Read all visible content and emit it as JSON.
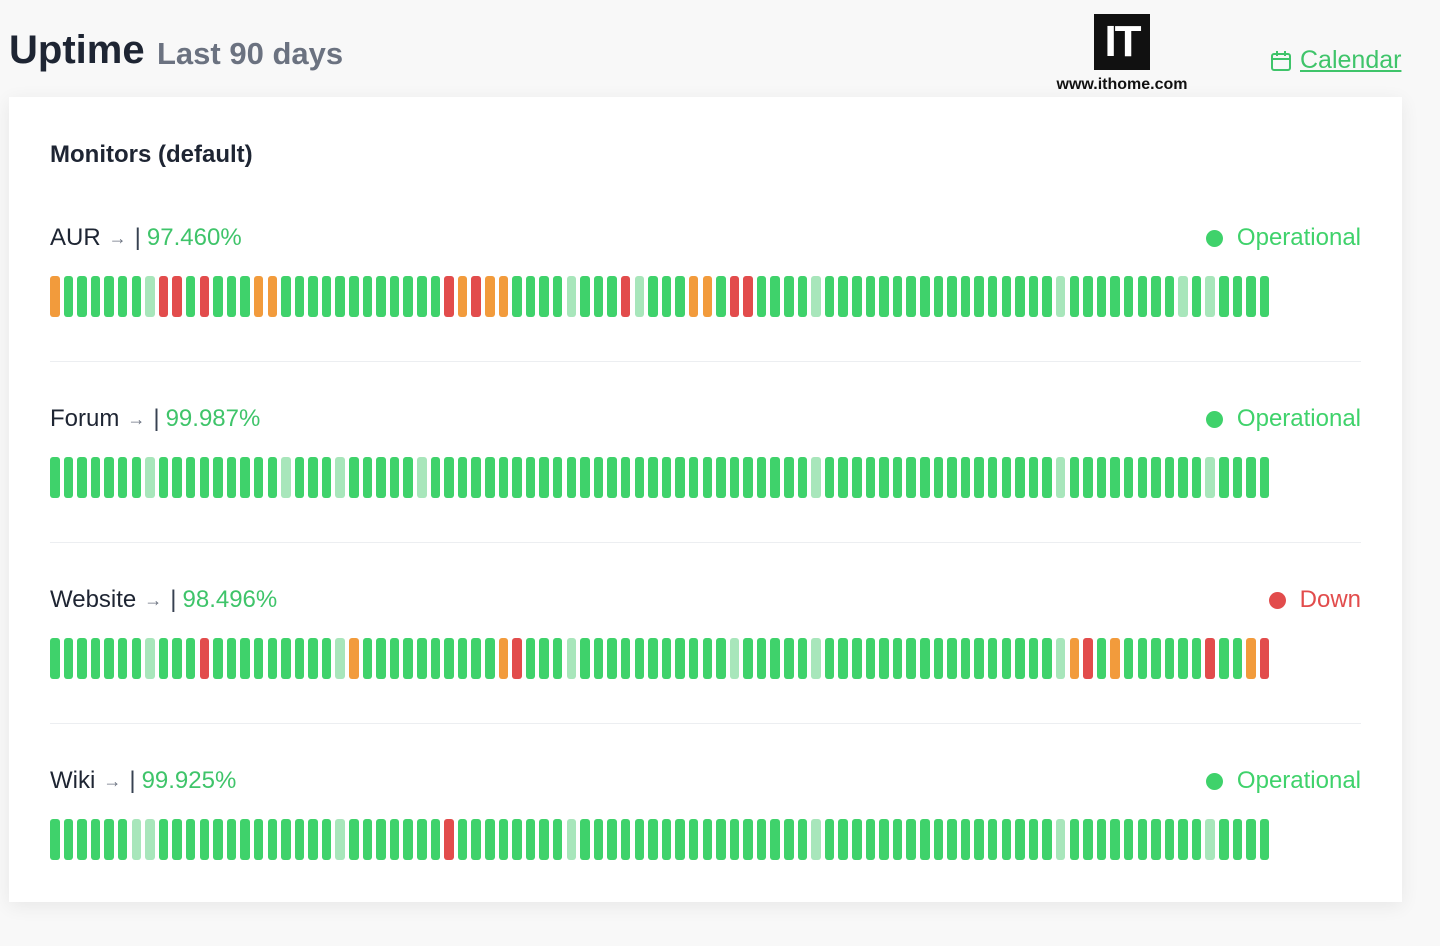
{
  "header": {
    "title": "Uptime",
    "subtitle": "Last 90 days",
    "calendar_link": "Calendar"
  },
  "watermark": {
    "logo": "IT",
    "url": "www.ithome.com"
  },
  "card": {
    "title": "Monitors (default)"
  },
  "row_arrow": "→",
  "row_divider": "|",
  "monitors": [
    {
      "name": "AUR",
      "uptime": "97.460%",
      "status": "Operational",
      "status_color": "#3fd26b",
      "bars": [
        "#f29b3c",
        "#3fd26b",
        "#3fd26b",
        "#3fd26b",
        "#3fd26b",
        "#3fd26b",
        "#3fd26b",
        "#a8e6bb",
        "#e24c4c",
        "#e24c4c",
        "#3fd26b",
        "#e24c4c",
        "#3fd26b",
        "#3fd26b",
        "#3fd26b",
        "#f29b3c",
        "#f29b3c",
        "#3fd26b",
        "#3fd26b",
        "#3fd26b",
        "#3fd26b",
        "#3fd26b",
        "#3fd26b",
        "#3fd26b",
        "#3fd26b",
        "#3fd26b",
        "#3fd26b",
        "#3fd26b",
        "#3fd26b",
        "#e24c4c",
        "#f29b3c",
        "#e24c4c",
        "#f29b3c",
        "#f29b3c",
        "#3fd26b",
        "#3fd26b",
        "#3fd26b",
        "#3fd26b",
        "#a8e6bb",
        "#3fd26b",
        "#3fd26b",
        "#3fd26b",
        "#e24c4c",
        "#a8e6bb",
        "#3fd26b",
        "#3fd26b",
        "#3fd26b",
        "#f29b3c",
        "#f29b3c",
        "#3fd26b",
        "#e24c4c",
        "#e24c4c",
        "#3fd26b",
        "#3fd26b",
        "#3fd26b",
        "#3fd26b",
        "#a8e6bb",
        "#3fd26b",
        "#3fd26b",
        "#3fd26b",
        "#3fd26b",
        "#3fd26b",
        "#3fd26b",
        "#3fd26b",
        "#3fd26b",
        "#3fd26b",
        "#3fd26b",
        "#3fd26b",
        "#3fd26b",
        "#3fd26b",
        "#3fd26b",
        "#3fd26b",
        "#3fd26b",
        "#3fd26b",
        "#a8e6bb",
        "#3fd26b",
        "#3fd26b",
        "#3fd26b",
        "#3fd26b",
        "#3fd26b",
        "#3fd26b",
        "#3fd26b",
        "#3fd26b",
        "#a8e6bb",
        "#3fd26b",
        "#a8e6bb",
        "#3fd26b",
        "#3fd26b",
        "#3fd26b",
        "#3fd26b"
      ]
    },
    {
      "name": "Forum",
      "uptime": "99.987%",
      "status": "Operational",
      "status_color": "#3fd26b",
      "bars": [
        "#3fd26b",
        "#3fd26b",
        "#3fd26b",
        "#3fd26b",
        "#3fd26b",
        "#3fd26b",
        "#3fd26b",
        "#a8e6bb",
        "#3fd26b",
        "#3fd26b",
        "#3fd26b",
        "#3fd26b",
        "#3fd26b",
        "#3fd26b",
        "#3fd26b",
        "#3fd26b",
        "#3fd26b",
        "#a8e6bb",
        "#3fd26b",
        "#3fd26b",
        "#3fd26b",
        "#a8e6bb",
        "#3fd26b",
        "#3fd26b",
        "#3fd26b",
        "#3fd26b",
        "#3fd26b",
        "#a8e6bb",
        "#3fd26b",
        "#3fd26b",
        "#3fd26b",
        "#3fd26b",
        "#3fd26b",
        "#3fd26b",
        "#3fd26b",
        "#3fd26b",
        "#3fd26b",
        "#3fd26b",
        "#3fd26b",
        "#3fd26b",
        "#3fd26b",
        "#3fd26b",
        "#3fd26b",
        "#3fd26b",
        "#3fd26b",
        "#3fd26b",
        "#3fd26b",
        "#3fd26b",
        "#3fd26b",
        "#3fd26b",
        "#3fd26b",
        "#3fd26b",
        "#3fd26b",
        "#3fd26b",
        "#3fd26b",
        "#3fd26b",
        "#a8e6bb",
        "#3fd26b",
        "#3fd26b",
        "#3fd26b",
        "#3fd26b",
        "#3fd26b",
        "#3fd26b",
        "#3fd26b",
        "#3fd26b",
        "#3fd26b",
        "#3fd26b",
        "#3fd26b",
        "#3fd26b",
        "#3fd26b",
        "#3fd26b",
        "#3fd26b",
        "#3fd26b",
        "#3fd26b",
        "#a8e6bb",
        "#3fd26b",
        "#3fd26b",
        "#3fd26b",
        "#3fd26b",
        "#3fd26b",
        "#3fd26b",
        "#3fd26b",
        "#3fd26b",
        "#3fd26b",
        "#3fd26b",
        "#a8e6bb",
        "#3fd26b",
        "#3fd26b",
        "#3fd26b",
        "#3fd26b"
      ]
    },
    {
      "name": "Website",
      "uptime": "98.496%",
      "status": "Down",
      "status_color": "#e24c4c",
      "bars": [
        "#3fd26b",
        "#3fd26b",
        "#3fd26b",
        "#3fd26b",
        "#3fd26b",
        "#3fd26b",
        "#3fd26b",
        "#a8e6bb",
        "#3fd26b",
        "#3fd26b",
        "#3fd26b",
        "#e24c4c",
        "#3fd26b",
        "#3fd26b",
        "#3fd26b",
        "#3fd26b",
        "#3fd26b",
        "#3fd26b",
        "#3fd26b",
        "#3fd26b",
        "#3fd26b",
        "#a8e6bb",
        "#f29b3c",
        "#3fd26b",
        "#3fd26b",
        "#3fd26b",
        "#3fd26b",
        "#3fd26b",
        "#3fd26b",
        "#3fd26b",
        "#3fd26b",
        "#3fd26b",
        "#3fd26b",
        "#f29b3c",
        "#e24c4c",
        "#3fd26b",
        "#3fd26b",
        "#3fd26b",
        "#a8e6bb",
        "#3fd26b",
        "#3fd26b",
        "#3fd26b",
        "#3fd26b",
        "#3fd26b",
        "#3fd26b",
        "#3fd26b",
        "#3fd26b",
        "#3fd26b",
        "#3fd26b",
        "#3fd26b",
        "#a8e6bb",
        "#3fd26b",
        "#3fd26b",
        "#3fd26b",
        "#3fd26b",
        "#3fd26b",
        "#a8e6bb",
        "#3fd26b",
        "#3fd26b",
        "#3fd26b",
        "#3fd26b",
        "#3fd26b",
        "#3fd26b",
        "#3fd26b",
        "#3fd26b",
        "#3fd26b",
        "#3fd26b",
        "#3fd26b",
        "#3fd26b",
        "#3fd26b",
        "#3fd26b",
        "#3fd26b",
        "#3fd26b",
        "#3fd26b",
        "#a8e6bb",
        "#f29b3c",
        "#e24c4c",
        "#3fd26b",
        "#f29b3c",
        "#3fd26b",
        "#3fd26b",
        "#3fd26b",
        "#3fd26b",
        "#3fd26b",
        "#3fd26b",
        "#e24c4c",
        "#3fd26b",
        "#3fd26b",
        "#f29b3c",
        "#e24c4c"
      ]
    },
    {
      "name": "Wiki",
      "uptime": "99.925%",
      "status": "Operational",
      "status_color": "#3fd26b",
      "bars": [
        "#3fd26b",
        "#3fd26b",
        "#3fd26b",
        "#3fd26b",
        "#3fd26b",
        "#3fd26b",
        "#a8e6bb",
        "#a8e6bb",
        "#3fd26b",
        "#3fd26b",
        "#3fd26b",
        "#3fd26b",
        "#3fd26b",
        "#3fd26b",
        "#3fd26b",
        "#3fd26b",
        "#3fd26b",
        "#3fd26b",
        "#3fd26b",
        "#3fd26b",
        "#3fd26b",
        "#a8e6bb",
        "#3fd26b",
        "#3fd26b",
        "#3fd26b",
        "#3fd26b",
        "#3fd26b",
        "#3fd26b",
        "#3fd26b",
        "#e24c4c",
        "#3fd26b",
        "#3fd26b",
        "#3fd26b",
        "#3fd26b",
        "#3fd26b",
        "#3fd26b",
        "#3fd26b",
        "#3fd26b",
        "#a8e6bb",
        "#3fd26b",
        "#3fd26b",
        "#3fd26b",
        "#3fd26b",
        "#3fd26b",
        "#3fd26b",
        "#3fd26b",
        "#3fd26b",
        "#3fd26b",
        "#3fd26b",
        "#3fd26b",
        "#3fd26b",
        "#3fd26b",
        "#3fd26b",
        "#3fd26b",
        "#3fd26b",
        "#3fd26b",
        "#a8e6bb",
        "#3fd26b",
        "#3fd26b",
        "#3fd26b",
        "#3fd26b",
        "#3fd26b",
        "#3fd26b",
        "#3fd26b",
        "#3fd26b",
        "#3fd26b",
        "#3fd26b",
        "#3fd26b",
        "#3fd26b",
        "#3fd26b",
        "#3fd26b",
        "#3fd26b",
        "#3fd26b",
        "#3fd26b",
        "#a8e6bb",
        "#3fd26b",
        "#3fd26b",
        "#3fd26b",
        "#3fd26b",
        "#3fd26b",
        "#3fd26b",
        "#3fd26b",
        "#3fd26b",
        "#3fd26b",
        "#3fd26b",
        "#a8e6bb",
        "#3fd26b",
        "#3fd26b",
        "#3fd26b",
        "#3fd26b"
      ]
    }
  ]
}
